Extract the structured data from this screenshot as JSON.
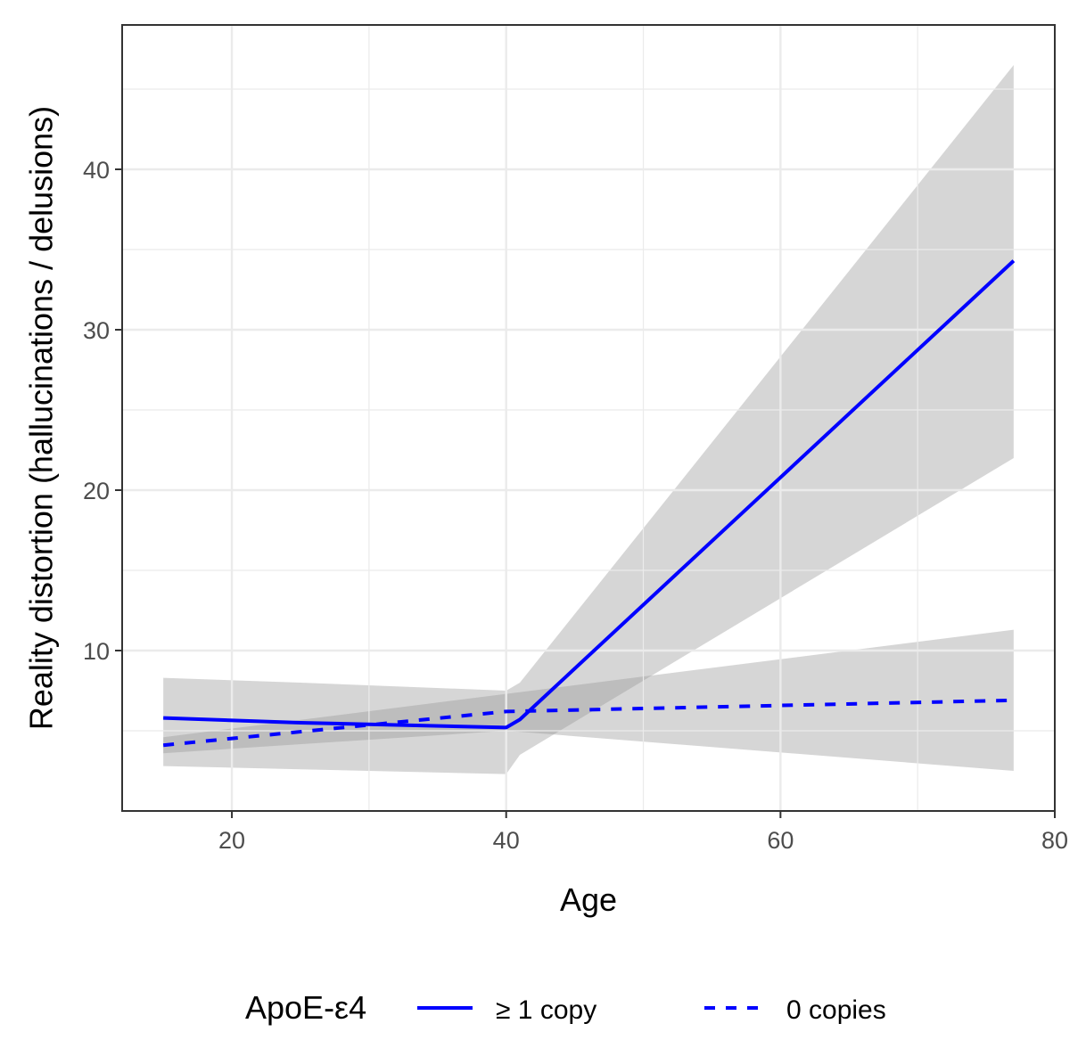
{
  "chart_data": {
    "type": "line",
    "xlabel": "Age",
    "ylabel": "Reality distortion (hallucinations / delusions)",
    "xlim": [
      12,
      80
    ],
    "ylim": [
      0,
      49
    ],
    "x_ticks": [
      20,
      40,
      60,
      80
    ],
    "y_ticks": [
      10,
      20,
      30,
      40
    ],
    "grid": true,
    "legend": {
      "title": "ApoE-ε4",
      "placement": "bottom"
    },
    "series": [
      {
        "name": "≥ 1 copy",
        "linestyle": "solid",
        "color": "#0000ff",
        "x": [
          15,
          25,
          40,
          41,
          77
        ],
        "y": [
          5.8,
          5.5,
          5.2,
          5.7,
          34.3
        ],
        "ci_lower": [
          2.8,
          2.6,
          2.3,
          3.5,
          22.0
        ],
        "ci_upper": [
          8.3,
          8.0,
          7.5,
          8.0,
          46.5
        ]
      },
      {
        "name": "0 copies",
        "linestyle": "dashed",
        "color": "#0000ff",
        "x": [
          15,
          40,
          77
        ],
        "y": [
          4.1,
          6.2,
          6.9
        ],
        "ci_lower": [
          3.6,
          5.0,
          2.5
        ],
        "ci_upper": [
          4.6,
          7.3,
          11.3
        ]
      }
    ],
    "colors": {
      "line": "#0000ff",
      "ribbon": "#999999",
      "grid": "#ebebeb",
      "panel_border": "#333333"
    }
  }
}
